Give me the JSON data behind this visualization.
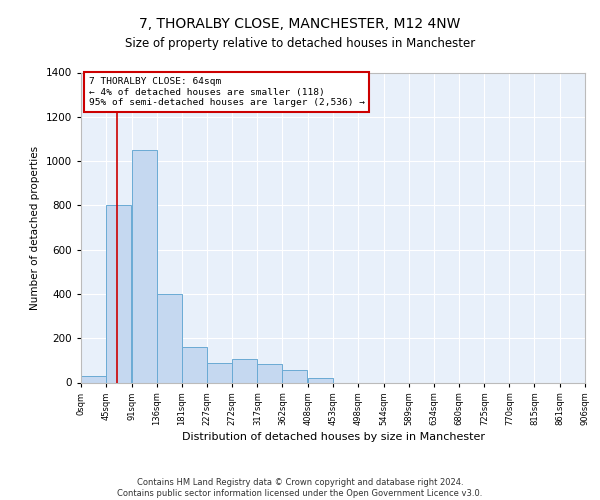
{
  "title": "7, THORALBY CLOSE, MANCHESTER, M12 4NW",
  "subtitle": "Size of property relative to detached houses in Manchester",
  "xlabel": "Distribution of detached houses by size in Manchester",
  "ylabel": "Number of detached properties",
  "bar_values": [
    30,
    800,
    1050,
    400,
    160,
    90,
    105,
    85,
    55,
    20,
    0,
    0,
    0,
    0,
    0,
    0,
    0,
    0,
    0,
    0
  ],
  "bin_labels": [
    "0sqm",
    "45sqm",
    "91sqm",
    "136sqm",
    "181sqm",
    "227sqm",
    "272sqm",
    "317sqm",
    "362sqm",
    "408sqm",
    "453sqm",
    "498sqm",
    "544sqm",
    "589sqm",
    "634sqm",
    "680sqm",
    "725sqm",
    "770sqm",
    "815sqm",
    "861sqm",
    "906sqm"
  ],
  "bar_color": "#c5d8f0",
  "bar_edge_color": "#6aaad4",
  "background_color": "#e8f0fa",
  "grid_color": "#ffffff",
  "annotation_box_text": "7 THORALBY CLOSE: 64sqm\n← 4% of detached houses are smaller (118)\n95% of semi-detached houses are larger (2,536) →",
  "annotation_box_color": "#cc0000",
  "vline_x": 64,
  "vline_color": "#cc0000",
  "ylim": [
    0,
    1400
  ],
  "yticks": [
    0,
    200,
    400,
    600,
    800,
    1000,
    1200,
    1400
  ],
  "footer_text": "Contains HM Land Registry data © Crown copyright and database right 2024.\nContains public sector information licensed under the Open Government Licence v3.0.",
  "bin_starts": [
    0,
    45,
    91,
    136,
    181,
    227,
    272,
    317,
    362,
    408,
    453,
    498,
    544,
    589,
    634,
    680,
    725,
    770,
    815,
    861
  ],
  "xlim_max": 906
}
